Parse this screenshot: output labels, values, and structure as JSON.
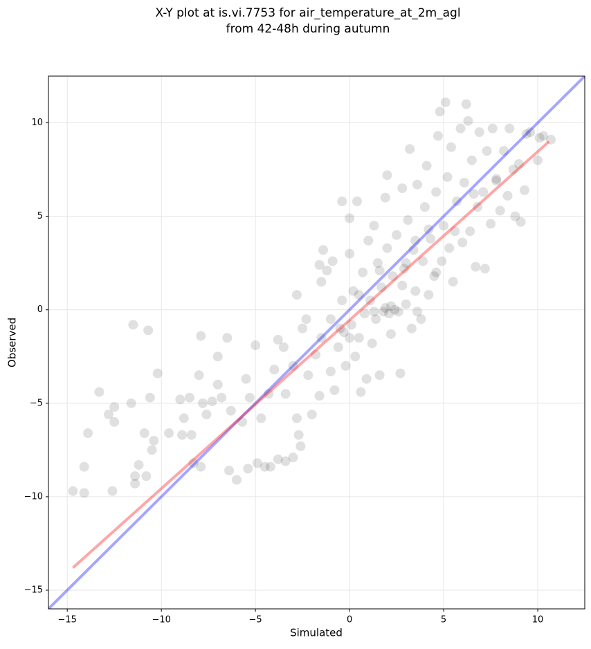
{
  "chart_data": {
    "type": "scatter",
    "title": [
      "X-Y plot at is.vi.7753 for air_temperature_at_2m_agl",
      "from 42-48h during autumn"
    ],
    "x_label": "Simulated",
    "y_label": "Observed",
    "xlim": [
      -16,
      12.5
    ],
    "ylim": [
      -16,
      12.5
    ],
    "xticks": [
      {
        "value": -15,
        "label": "−15"
      },
      {
        "value": -10,
        "label": "−10"
      },
      {
        "value": -5,
        "label": "−5"
      },
      0,
      5,
      10
    ],
    "yticks": [
      {
        "value": -15,
        "label": "−15"
      },
      {
        "value": -10,
        "label": "−10"
      },
      {
        "value": -5,
        "label": "−5"
      },
      0,
      5,
      10
    ],
    "grid": true,
    "series": [
      {
        "color": "#000000",
        "x": [
          -14.7,
          -14.1,
          -14.1,
          -13.9,
          -13.3,
          -12.8,
          -12.5,
          -12.5,
          -12.6,
          -11.6,
          -11.5,
          -11.4,
          -11.4,
          -11.2,
          -10.9,
          -10.8,
          -10.7,
          -10.6,
          -10.4,
          -10.2,
          -10.5,
          -9.6,
          -9.0,
          -8.9,
          -8.8,
          -8.5,
          -8.3,
          -8.4,
          -7.9,
          -8.0,
          -7.9,
          -7.8,
          -7.6,
          -7.3,
          -7.0,
          -7.0,
          -6.8,
          -6.5,
          -6.4,
          -6.3,
          -6.0,
          -5.7,
          -5.5,
          -5.4,
          -5.3,
          -5.0,
          -4.9,
          -4.7,
          -4.5,
          -4.2,
          -3.8,
          -3.4,
          -3.0,
          -4.3,
          -4.0,
          -3.8,
          -3.5,
          -3.4,
          -3.0,
          -2.8,
          -2.7,
          -2.6,
          -2.8,
          -2.5,
          -2.2,
          -2.3,
          -2.0,
          -1.8,
          -1.6,
          -1.5,
          -1.5,
          -1.6,
          -1.4,
          -1.2,
          -1.0,
          -1.0,
          -0.9,
          -0.8,
          -0.6,
          -0.4,
          -0.4,
          -0.3,
          -0.2,
          0,
          0,
          0.1,
          0.2,
          0.3,
          0.4,
          0.5,
          0.6,
          0.7,
          0.8,
          0.9,
          1.0,
          1.1,
          1.2,
          1.3,
          1.4,
          1.5,
          1.6,
          1.7,
          1.8,
          1.9,
          2.0,
          2.0,
          2.1,
          2.2,
          2.3,
          2.5,
          2.6,
          2.7,
          2.8,
          2.9,
          3.0,
          3.1,
          3.2,
          3.3,
          3.4,
          3.5,
          3.6,
          3.8,
          3.9,
          4.0,
          4.1,
          4.2,
          4.3,
          4.5,
          4.6,
          4.7,
          4.8,
          4.9,
          5.0,
          5.1,
          5.2,
          5.3,
          5.4,
          5.5,
          5.7,
          5.9,
          6.0,
          6.1,
          6.2,
          6.3,
          6.4,
          6.5,
          6.7,
          6.8,
          6.9,
          7.1,
          7.2,
          7.3,
          7.5,
          7.6,
          7.8,
          8.0,
          8.2,
          8.4,
          8.5,
          8.8,
          9.0,
          9.1,
          9.3,
          9.4,
          9.6,
          10.0,
          10.1,
          10.3,
          10.7,
          8.7,
          3.6,
          2.4,
          1.9,
          2.2,
          1.3,
          0.5,
          -0.5,
          0.0,
          3.0,
          4.2,
          5.6,
          6.6,
          7.8,
          4.6,
          2.8,
          3.5,
          1.6
        ],
        "values": [
          -9.7,
          -9.8,
          -8.4,
          -6.6,
          -4.4,
          -5.6,
          -5.2,
          -6.0,
          -9.7,
          -5.0,
          -0.8,
          -8.9,
          -9.3,
          -8.3,
          -6.6,
          -8.9,
          -1.1,
          -4.7,
          -7.0,
          -3.4,
          -7.5,
          -6.6,
          -4.8,
          -6.7,
          -5.8,
          -4.7,
          -8.2,
          -6.7,
          -1.4,
          -3.5,
          -8.4,
          -5.0,
          -5.6,
          -4.9,
          -4.0,
          -2.5,
          -4.7,
          -1.5,
          -8.6,
          -5.4,
          -9.1,
          -6.0,
          -3.7,
          -8.5,
          -4.7,
          -1.9,
          -8.2,
          -5.8,
          -8.4,
          -8.4,
          -8.0,
          -8.1,
          -7.9,
          -4.5,
          -3.2,
          -1.6,
          -2.0,
          -4.5,
          -3.0,
          -5.8,
          -6.7,
          -7.3,
          0.8,
          -1.0,
          -3.5,
          -0.5,
          -5.6,
          -2.4,
          -4.6,
          -1.5,
          1.5,
          2.4,
          3.2,
          2.1,
          -0.5,
          -3.3,
          2.6,
          -4.3,
          -2.0,
          5.8,
          0.5,
          -1.2,
          -3.0,
          4.9,
          3.0,
          -0.8,
          1.0,
          -2.5,
          5.8,
          -1.5,
          -4.4,
          2.0,
          -0.2,
          -3.7,
          3.7,
          0.5,
          -1.8,
          4.5,
          -0.5,
          2.5,
          -3.5,
          1.2,
          -0.1,
          6.0,
          7.2,
          3.3,
          -0.2,
          -1.3,
          1.8,
          4.0,
          -0.1,
          -3.4,
          6.5,
          2.2,
          0.3,
          4.8,
          8.6,
          -1.0,
          3.2,
          1.0,
          6.7,
          -0.5,
          2.6,
          5.5,
          7.7,
          0.8,
          3.8,
          1.8,
          6.3,
          9.3,
          10.6,
          2.6,
          4.5,
          11.1,
          7.1,
          3.3,
          8.7,
          1.5,
          5.8,
          9.7,
          3.6,
          6.8,
          11.0,
          10.1,
          4.2,
          8.0,
          2.3,
          5.5,
          9.5,
          6.3,
          2.2,
          8.5,
          4.6,
          9.7,
          7.0,
          5.3,
          8.5,
          6.1,
          9.7,
          5.0,
          7.8,
          4.7,
          6.4,
          9.4,
          9.5,
          8.0,
          9.2,
          9.3,
          9.1,
          7.5,
          -0.1,
          0.0,
          0.1,
          0.2,
          -0.1,
          0.8,
          -1.0,
          -1.5,
          2.5,
          4.3,
          4.2,
          6.2,
          6.9,
          2.0,
          1.3,
          3.7,
          2.1
        ]
      }
    ],
    "lines": [
      {
        "color": "#0000ff",
        "x": [
          -16,
          12.5
        ],
        "values": [
          -16,
          12.5
        ]
      },
      {
        "color": "#ff0000",
        "x": [
          -14.7,
          10.6
        ],
        "values": [
          -13.8,
          9.0
        ]
      }
    ]
  }
}
